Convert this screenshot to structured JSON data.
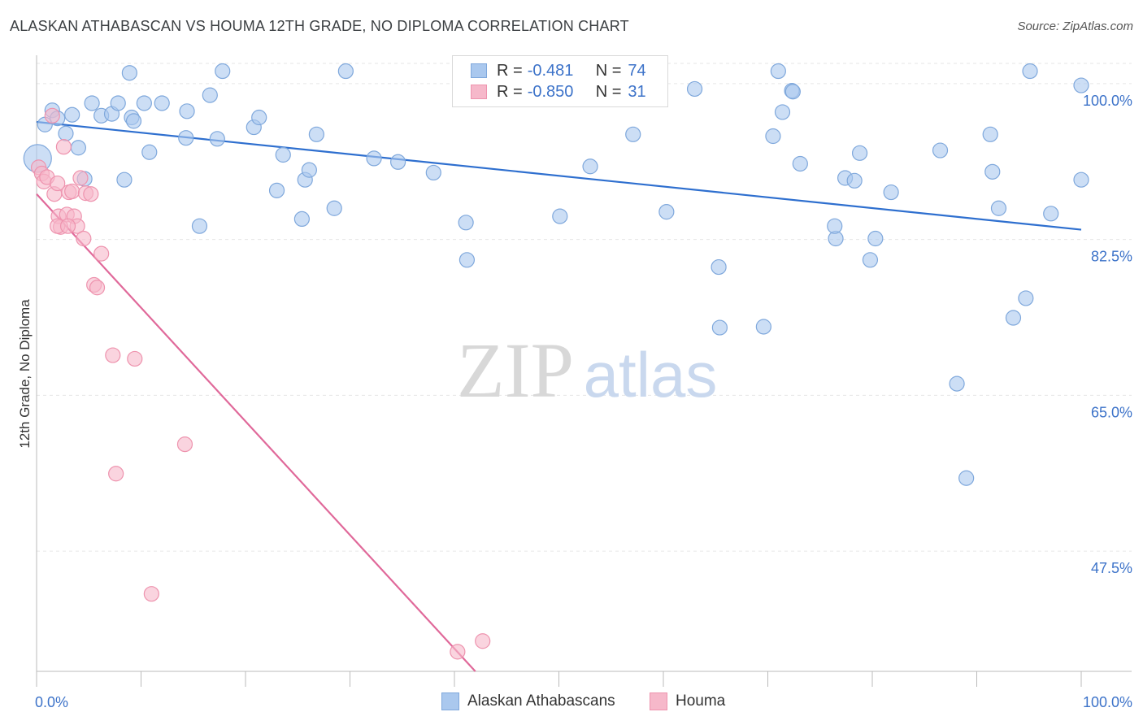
{
  "title": "ALASKAN ATHABASCAN VS HOUMA 12TH GRADE, NO DIPLOMA CORRELATION CHART",
  "source": "Source: ZipAtlas.com",
  "watermark": {
    "zip": "ZIP",
    "atlas": "atlas"
  },
  "legend": {
    "rows": [
      {
        "r_label": "R =",
        "r_value": "-0.481",
        "n_label": "N =",
        "n_value": "74"
      },
      {
        "r_label": "R =",
        "r_value": "-0.850",
        "n_label": "N =",
        "n_value": "31"
      }
    ]
  },
  "bottom_legend": {
    "series1": "Alaskan Athabascans",
    "series2": "Houma"
  },
  "colors": {
    "blue_fill": "#aac8ee",
    "blue_stroke": "#7fa8dc",
    "blue_line": "#2e6fcf",
    "pink_fill": "#f6b8ca",
    "pink_stroke": "#ee93ae",
    "pink_line": "#e0699a",
    "tick_text": "#3d73c9"
  },
  "chart_data": {
    "type": "scatter",
    "title": "ALASKAN ATHABASCAN VS HOUMA 12TH GRADE, NO DIPLOMA CORRELATION CHART",
    "xlabel": "",
    "ylabel": "12th Grade, No Diploma",
    "xlim": [
      0,
      100
    ],
    "ylim": [
      34,
      103
    ],
    "x_tick_labels": [
      "0.0%",
      "100.0%"
    ],
    "y_ticks": [
      100,
      82.5,
      65,
      47.5
    ],
    "y_tick_labels": [
      "100.0%",
      "82.5%",
      "65.0%",
      "47.5%"
    ],
    "grid": true,
    "legend_position": "top-center",
    "series": [
      {
        "name": "Alaskan Athabascans",
        "color": "#aac8ee",
        "trend": {
          "x": [
            0,
            100
          ],
          "y": [
            95.7,
            83.6
          ]
        },
        "points": [
          [
            0.1,
            91.6,
            "large"
          ],
          [
            0.8,
            95.4
          ],
          [
            1.5,
            97.0
          ],
          [
            2.0,
            96.1
          ],
          [
            2.8,
            94.4
          ],
          [
            3.4,
            96.5
          ],
          [
            4.0,
            92.8
          ],
          [
            4.6,
            89.3
          ],
          [
            5.3,
            97.8
          ],
          [
            6.2,
            96.4
          ],
          [
            7.2,
            96.6
          ],
          [
            7.8,
            97.8
          ],
          [
            8.4,
            89.2
          ],
          [
            8.9,
            101.2
          ],
          [
            9.1,
            96.2
          ],
          [
            9.3,
            95.8
          ],
          [
            10.3,
            97.8
          ],
          [
            10.8,
            92.3
          ],
          [
            12.0,
            97.8
          ],
          [
            14.4,
            96.9
          ],
          [
            14.3,
            93.9
          ],
          [
            15.6,
            84.0
          ],
          [
            16.6,
            98.7
          ],
          [
            17.3,
            93.8
          ],
          [
            17.8,
            101.4
          ],
          [
            20.8,
            95.1
          ],
          [
            21.3,
            96.2
          ],
          [
            23.0,
            88.0
          ],
          [
            23.6,
            92.0
          ],
          [
            25.4,
            84.8
          ],
          [
            25.7,
            89.2
          ],
          [
            26.1,
            90.3
          ],
          [
            26.8,
            94.3
          ],
          [
            28.5,
            86.0
          ],
          [
            29.6,
            101.4
          ],
          [
            32.3,
            91.6
          ],
          [
            34.6,
            91.2
          ],
          [
            38.0,
            90.0
          ],
          [
            41.1,
            84.4
          ],
          [
            41.2,
            80.2
          ],
          [
            50.1,
            85.1
          ],
          [
            53.0,
            90.7
          ],
          [
            57.1,
            94.3
          ],
          [
            60.3,
            85.6
          ],
          [
            63.0,
            99.4
          ],
          [
            65.3,
            79.4
          ],
          [
            65.4,
            72.6
          ],
          [
            69.6,
            72.7
          ],
          [
            70.5,
            94.1
          ],
          [
            71.0,
            101.4
          ],
          [
            71.4,
            96.8
          ],
          [
            72.3,
            99.2
          ],
          [
            72.4,
            99.1
          ],
          [
            73.1,
            91.0
          ],
          [
            76.5,
            82.6
          ],
          [
            76.4,
            84.0
          ],
          [
            77.4,
            89.4
          ],
          [
            78.3,
            89.1
          ],
          [
            78.8,
            92.2
          ],
          [
            79.8,
            80.2
          ],
          [
            80.3,
            82.6
          ],
          [
            81.8,
            87.8
          ],
          [
            86.5,
            92.5
          ],
          [
            88.1,
            66.3
          ],
          [
            89.0,
            55.7
          ],
          [
            91.3,
            94.3
          ],
          [
            91.5,
            90.1
          ],
          [
            92.1,
            86.0
          ],
          [
            93.5,
            73.7
          ],
          [
            94.7,
            75.9
          ],
          [
            95.1,
            101.4
          ],
          [
            97.1,
            85.4
          ],
          [
            100.0,
            99.8
          ],
          [
            100.0,
            89.2
          ]
        ]
      },
      {
        "name": "Houma",
        "color": "#f6b8ca",
        "trend": {
          "x": [
            0,
            42
          ],
          "y": [
            87.6,
            34
          ]
        },
        "points": [
          [
            0.2,
            90.6
          ],
          [
            0.5,
            89.9
          ],
          [
            0.7,
            89.0
          ],
          [
            1.0,
            89.5
          ],
          [
            1.5,
            96.4
          ],
          [
            1.7,
            87.6
          ],
          [
            2.0,
            88.8
          ],
          [
            2.1,
            85.1
          ],
          [
            2.3,
            83.9
          ],
          [
            2.6,
            92.9
          ],
          [
            2.9,
            85.3
          ],
          [
            3.1,
            87.8
          ],
          [
            3.4,
            87.9
          ],
          [
            3.6,
            85.1
          ],
          [
            3.9,
            84.0
          ],
          [
            4.2,
            89.4
          ],
          [
            4.5,
            82.6
          ],
          [
            4.7,
            87.7
          ],
          [
            5.2,
            87.6
          ],
          [
            5.5,
            77.4
          ],
          [
            5.8,
            77.1
          ],
          [
            6.2,
            80.9
          ],
          [
            7.3,
            69.5
          ],
          [
            7.6,
            56.2
          ],
          [
            9.4,
            69.1
          ],
          [
            11.0,
            42.7
          ],
          [
            14.2,
            59.5
          ],
          [
            40.3,
            36.2
          ],
          [
            42.7,
            37.4
          ],
          [
            2.0,
            84.0
          ],
          [
            3.0,
            84.0
          ]
        ]
      }
    ]
  }
}
